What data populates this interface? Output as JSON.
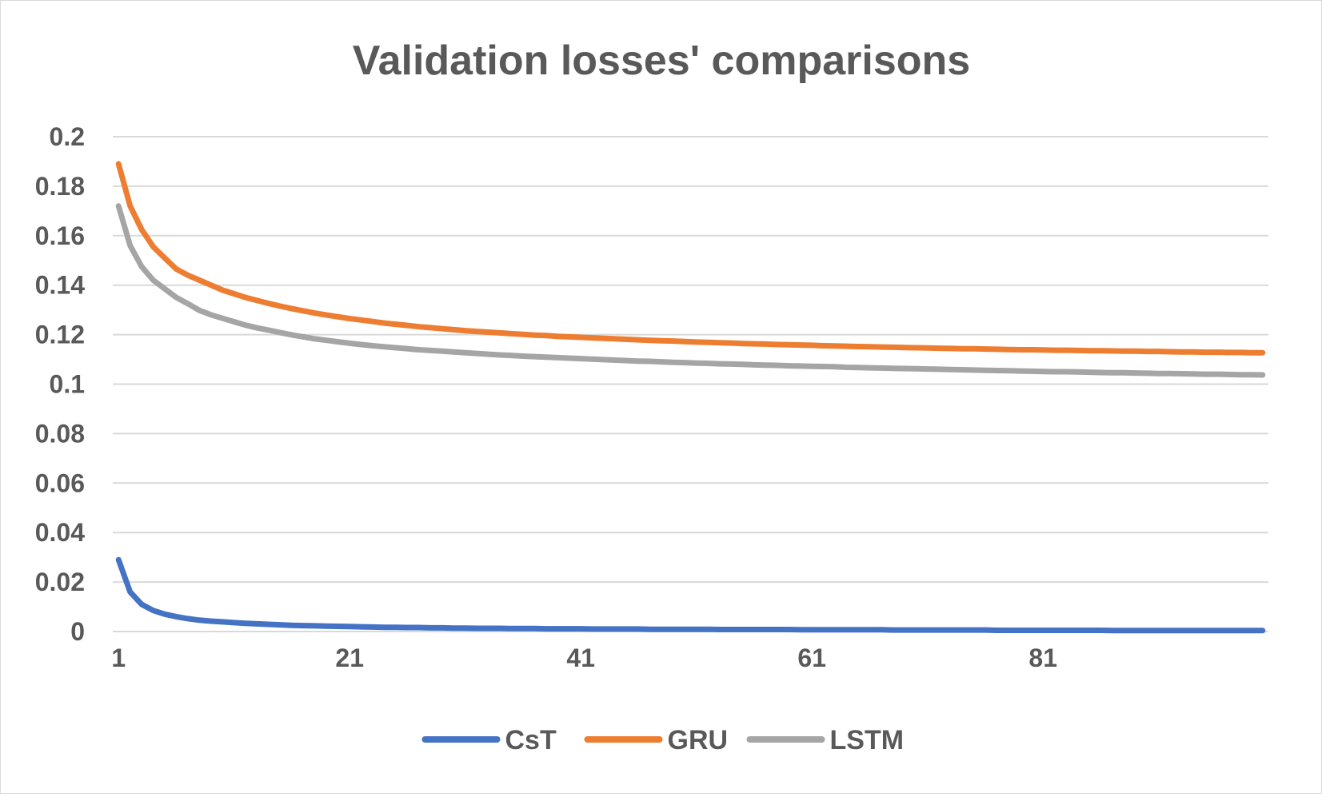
{
  "chart_data": {
    "type": "line",
    "title": "Validation losses' comparisons",
    "xlabel": "",
    "ylabel": "",
    "x_start": 1,
    "x_end": 100,
    "x_ticks": [
      1,
      21,
      41,
      61,
      81
    ],
    "x_tick_labels": [
      "1",
      "21",
      "41",
      "61",
      "81"
    ],
    "ylim": [
      0,
      0.2
    ],
    "y_ticks": [
      0,
      0.02,
      0.04,
      0.06,
      0.08,
      0.1,
      0.12,
      0.14,
      0.16,
      0.18,
      0.2
    ],
    "y_tick_labels": [
      "0",
      "0.02",
      "0.04",
      "0.06",
      "0.08",
      "0.1",
      "0.12",
      "0.14",
      "0.16",
      "0.18",
      "0.2"
    ],
    "grid": true,
    "legend_position": "bottom",
    "series": [
      {
        "name": "CsT",
        "color": "#4472C4",
        "values": [
          0.029,
          0.016,
          0.011,
          0.0085,
          0.007,
          0.006,
          0.0052,
          0.0046,
          0.0042,
          0.0039,
          0.0036,
          0.0033,
          0.0031,
          0.0029,
          0.0027,
          0.0025,
          0.0024,
          0.0023,
          0.0022,
          0.0021,
          0.002,
          0.0019,
          0.0018,
          0.0017,
          0.0017,
          0.0016,
          0.0016,
          0.0015,
          0.0015,
          0.0014,
          0.0014,
          0.0013,
          0.0013,
          0.0013,
          0.0012,
          0.0012,
          0.0012,
          0.0011,
          0.0011,
          0.0011,
          0.0011,
          0.001,
          0.001,
          0.001,
          0.001,
          0.001,
          0.0009,
          0.0009,
          0.0009,
          0.0009,
          0.0009,
          0.0009,
          0.0008,
          0.0008,
          0.0008,
          0.0008,
          0.0008,
          0.0008,
          0.0008,
          0.0007,
          0.0007,
          0.0007,
          0.0007,
          0.0007,
          0.0007,
          0.0007,
          0.0007,
          0.0006,
          0.0006,
          0.0006,
          0.0006,
          0.0006,
          0.0006,
          0.0006,
          0.0006,
          0.0006,
          0.0005,
          0.0005,
          0.0005,
          0.0005,
          0.0005,
          0.0005,
          0.0005,
          0.0005,
          0.0005,
          0.0005,
          0.0004,
          0.0004,
          0.0004,
          0.0004,
          0.0004,
          0.0004,
          0.0004,
          0.0004,
          0.0004,
          0.0004,
          0.0004,
          0.0004,
          0.0004,
          0.0004
        ]
      },
      {
        "name": "GRU",
        "color": "#ED7D31",
        "values": [
          0.189,
          0.172,
          0.1625,
          0.1555,
          0.151,
          0.1465,
          0.144,
          0.142,
          0.14,
          0.138,
          0.1365,
          0.135,
          0.1338,
          0.1326,
          0.1315,
          0.1305,
          0.1296,
          0.1287,
          0.1279,
          0.1272,
          0.1265,
          0.1259,
          0.1253,
          0.1247,
          0.1242,
          0.1237,
          0.1232,
          0.1228,
          0.1224,
          0.122,
          0.1216,
          0.1213,
          0.121,
          0.1207,
          0.1204,
          0.1201,
          0.1198,
          0.1196,
          0.1193,
          0.1191,
          0.1189,
          0.1187,
          0.1185,
          0.1183,
          0.1181,
          0.1179,
          0.1177,
          0.1175,
          0.1174,
          0.1172,
          0.117,
          0.1169,
          0.1167,
          0.1166,
          0.1164,
          0.1163,
          0.1162,
          0.116,
          0.1159,
          0.1158,
          0.1157,
          0.1155,
          0.1154,
          0.1153,
          0.1152,
          0.1151,
          0.115,
          0.1149,
          0.1148,
          0.1147,
          0.1146,
          0.1145,
          0.1144,
          0.1143,
          0.1143,
          0.1142,
          0.1141,
          0.114,
          0.1139,
          0.1139,
          0.1138,
          0.1137,
          0.1137,
          0.1136,
          0.1135,
          0.1135,
          0.1134,
          0.1133,
          0.1133,
          0.1132,
          0.1132,
          0.1131,
          0.113,
          0.113,
          0.1129,
          0.1129,
          0.1128,
          0.1128,
          0.1127,
          0.1127
        ]
      },
      {
        "name": "LSTM",
        "color": "#A5A5A5",
        "values": [
          0.172,
          0.156,
          0.1475,
          0.142,
          0.1385,
          0.135,
          0.1325,
          0.1298,
          0.128,
          0.1266,
          0.1252,
          0.1238,
          0.1227,
          0.1218,
          0.1208,
          0.1199,
          0.1191,
          0.1183,
          0.1177,
          0.1171,
          0.1165,
          0.116,
          0.1155,
          0.1151,
          0.1147,
          0.1143,
          0.1139,
          0.1136,
          0.1133,
          0.113,
          0.1127,
          0.1124,
          0.1121,
          0.1118,
          0.1116,
          0.1113,
          0.1111,
          0.1109,
          0.1107,
          0.1105,
          0.1103,
          0.1101,
          0.1099,
          0.1097,
          0.1095,
          0.1093,
          0.1092,
          0.109,
          0.1088,
          0.1087,
          0.1085,
          0.1084,
          0.1082,
          0.1081,
          0.108,
          0.1078,
          0.1077,
          0.1076,
          0.1074,
          0.1073,
          0.1072,
          0.1071,
          0.107,
          0.1068,
          0.1067,
          0.1066,
          0.1065,
          0.1064,
          0.1063,
          0.1062,
          0.1061,
          0.106,
          0.1059,
          0.1058,
          0.1057,
          0.1056,
          0.1055,
          0.1054,
          0.1053,
          0.1052,
          0.1051,
          0.105,
          0.105,
          0.1049,
          0.1048,
          0.1047,
          0.1046,
          0.1046,
          0.1045,
          0.1044,
          0.1043,
          0.1043,
          0.1042,
          0.1041,
          0.104,
          0.104,
          0.1039,
          0.1038,
          0.1038,
          0.1037
        ]
      }
    ]
  }
}
